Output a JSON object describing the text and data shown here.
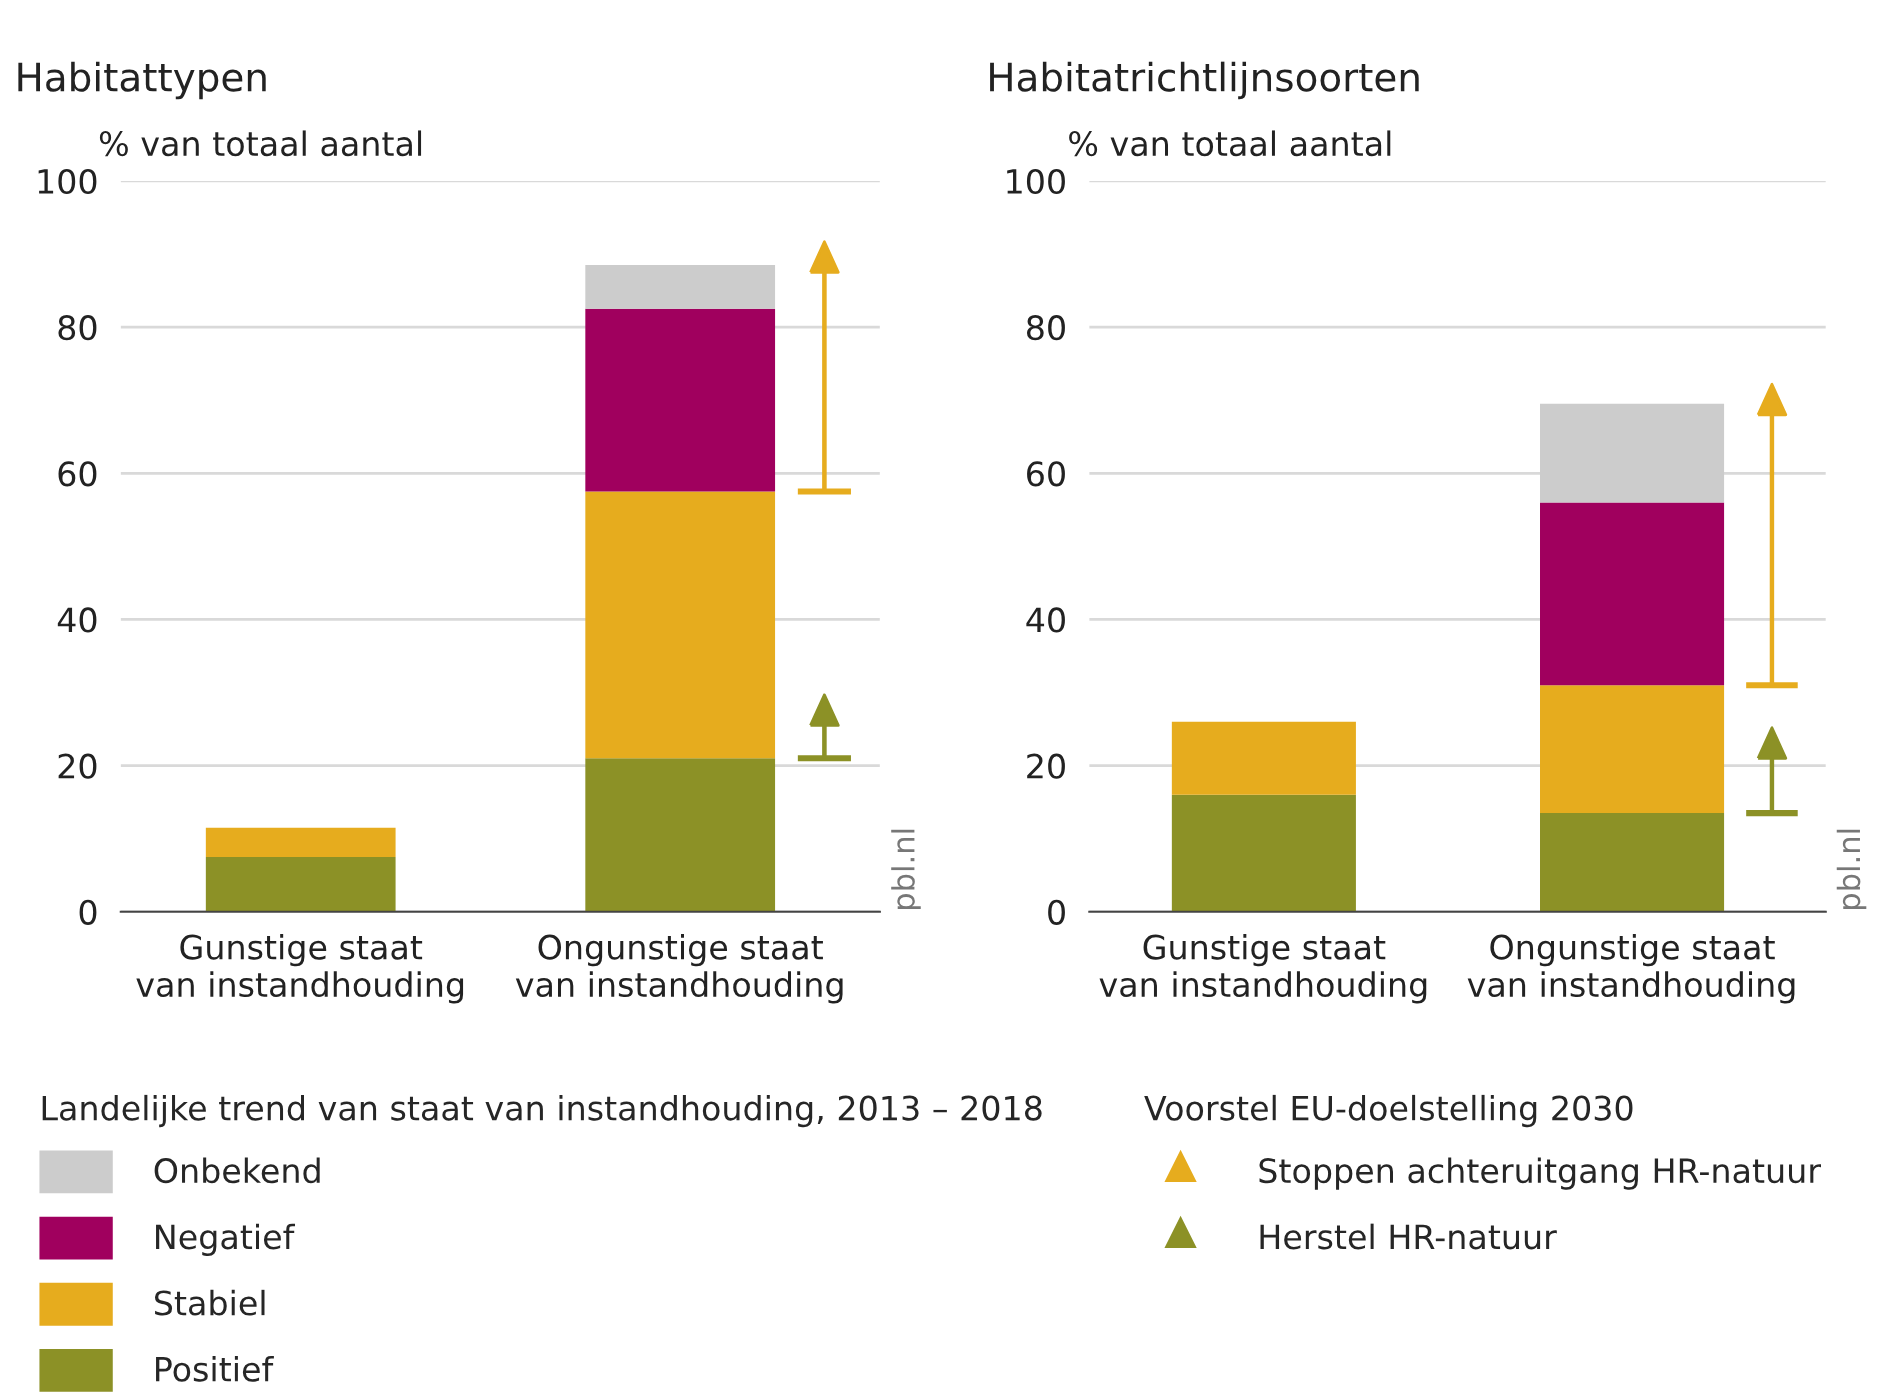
{
  "chart_data": [
    {
      "type": "bar",
      "title": "Habitattypen",
      "ylabel": "% van totaal aantal",
      "categories": [
        "Gunstige staat\nvan instandhouding",
        "Ongunstige staat\nvan instandhouding"
      ],
      "ylim": [
        0,
        100
      ],
      "yticks": [
        0,
        20,
        40,
        60,
        80,
        100
      ],
      "grid": "y",
      "legend": "bottom",
      "legend_title": "Landelijke trend van staat van instandhouding, 2013 – 2018",
      "annotations": [
        "pbl.nl"
      ],
      "series": [
        {
          "name": "Positief",
          "color": "#8c9126",
          "base": [
            0,
            0
          ],
          "values": [
            7.5,
            21
          ]
        },
        {
          "name": "Stabiel",
          "color": "#e6ac1e",
          "base": [
            7.5,
            21
          ],
          "values": [
            4,
            36.5
          ]
        },
        {
          "name": "Negatief",
          "color": "#a0005e",
          "base": [
            null,
            57.5
          ],
          "values": [
            null,
            25
          ]
        },
        {
          "name": "Onbekend",
          "color": "#cccccc",
          "base": [
            null,
            82.5
          ],
          "values": [
            null,
            6
          ]
        },
        {
          "color": "#e6ac1e",
          "marker": "triangle",
          "base": [
            null,
            57.5
          ],
          "values": [
            null,
            30
          ]
        },
        {
          "color": "#8c9126",
          "marker": "triangle",
          "base": [
            null,
            21
          ],
          "values": [
            null,
            4.5
          ]
        }
      ]
    },
    {
      "type": "bar",
      "title": "Habitatrichtlijnsoorten",
      "ylabel": "% van totaal aantal",
      "categories": [
        "Gunstige staat\nvan instandhouding",
        "Ongunstige staat\nvan instandhouding"
      ],
      "ylim": [
        0,
        100
      ],
      "yticks": [
        0,
        20,
        40,
        60,
        80,
        100
      ],
      "grid": "y",
      "legend": "bottom",
      "legend_title": "Voorstel EU-doelstelling 2030",
      "annotations": [
        "pbl.nl"
      ],
      "series": [
        {
          "color": "#8c9126",
          "base": [
            0,
            0
          ],
          "values": [
            16,
            13.5
          ]
        },
        {
          "color": "#e6ac1e",
          "base": [
            16,
            13.5
          ],
          "values": [
            10,
            17.5
          ]
        },
        {
          "color": "#a0005e",
          "base": [
            null,
            31
          ],
          "values": [
            null,
            25
          ]
        },
        {
          "color": "#cccccc",
          "base": [
            null,
            56
          ],
          "values": [
            null,
            13.5
          ]
        },
        {
          "name": "Stoppen achteruitgang HR-natuur",
          "color": "#e6ac1e",
          "marker": "triangle",
          "base": [
            null,
            31
          ],
          "values": [
            null,
            37
          ]
        },
        {
          "name": "Herstel HR-natuur",
          "color": "#8c9126",
          "marker": "triangle",
          "base": [
            null,
            13.5
          ],
          "values": [
            null,
            7.5
          ]
        }
      ]
    }
  ]
}
